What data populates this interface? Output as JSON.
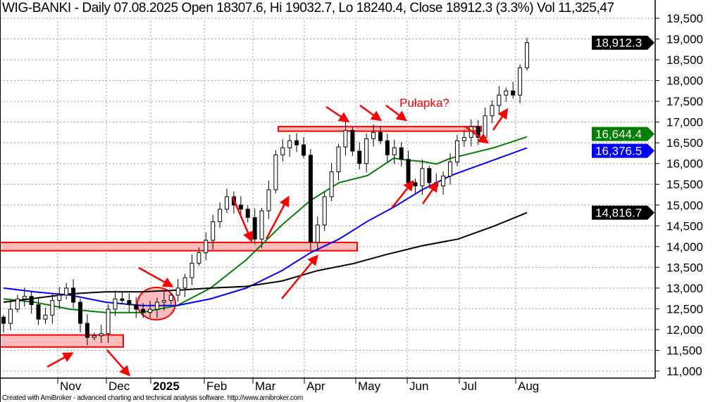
{
  "chart_data": {
    "type": "candlestick",
    "title": "WIG-BANKI - Daily 07.08.2025 Open 18307.6, Hi 19032.7, Lo 18240.4, Close 18912.3 (3.3%) Vol 11,325,47",
    "x_tick_labels": [
      "Nov",
      "Dec",
      "2025",
      "Feb",
      "Mar",
      "Apr",
      "May",
      "Jun",
      "Jul",
      "Aug"
    ],
    "y_ticks": [
      11000,
      11500,
      12000,
      12500,
      13000,
      13500,
      14000,
      14500,
      15000,
      15500,
      16000,
      16500,
      17000,
      17500,
      18000,
      18500,
      19000,
      19500
    ],
    "y_tick_labels": [
      "11,000",
      "11,500",
      "12,000",
      "12,500",
      "13,000",
      "13,500",
      "14,000",
      "14,500",
      "15,000",
      "15,500",
      "16,000",
      "16,500",
      "17,000",
      "17,500",
      "18,000",
      "18,500",
      "19,000",
      "19,500"
    ],
    "ylim": [
      10700,
      19700
    ],
    "grid": true,
    "closes": [
      12150,
      12490,
      12740,
      12800,
      12600,
      12250,
      12350,
      12700,
      12830,
      13000,
      12660,
      12150,
      11810,
      11850,
      11900,
      12490,
      12740,
      12700,
      12600,
      12490,
      12410,
      12490,
      12660,
      12700,
      12830,
      13000,
      13250,
      13600,
      13850,
      14150,
      14600,
      14900,
      15200,
      15000,
      14900,
      14700,
      14180,
      14860,
      15370,
      16210,
      16380,
      16550,
      16450,
      16200,
      14100,
      14520,
      15200,
      15800,
      16400,
      16800,
      16300,
      16000,
      16600,
      16750,
      16550,
      16210,
      16380,
      16100,
      15540,
      15460,
      15880,
      15540,
      15460,
      15700,
      16040,
      16550,
      16630,
      16890,
      16630,
      17150,
      17400,
      17650,
      17750,
      17650,
      18307.6,
      18912.3
    ],
    "last_bar": {
      "open": 18307.6,
      "high": 19032.7,
      "low": 18240.4,
      "close": 18912.3
    },
    "series": [
      {
        "color": "#008000",
        "points": [
          [
            0,
            12740
          ],
          [
            13,
            12660
          ],
          [
            28,
            12490
          ],
          [
            43,
            12410
          ],
          [
            58,
            12410
          ],
          [
            73,
            12580
          ],
          [
            87,
            13000
          ],
          [
            102,
            13680
          ],
          [
            117,
            14520
          ],
          [
            129,
            15110
          ],
          [
            141,
            15540
          ],
          [
            153,
            15710
          ],
          [
            164,
            16130
          ],
          [
            170,
            16080
          ],
          [
            176,
            16050
          ],
          [
            182,
            15990
          ],
          [
            188,
            16130
          ],
          [
            194,
            16210
          ],
          [
            206,
            16380
          ],
          [
            220,
            16644.4
          ]
        ],
        "last_label": "16,644.4"
      },
      {
        "color": "#0000ff",
        "points": [
          [
            0,
            13000
          ],
          [
            13,
            12910
          ],
          [
            28,
            12830
          ],
          [
            43,
            12660
          ],
          [
            58,
            12580
          ],
          [
            73,
            12580
          ],
          [
            87,
            12740
          ],
          [
            102,
            13000
          ],
          [
            117,
            13420
          ],
          [
            129,
            13850
          ],
          [
            141,
            14180
          ],
          [
            153,
            14610
          ],
          [
            164,
            14950
          ],
          [
            176,
            15370
          ],
          [
            188,
            15710
          ],
          [
            200,
            15960
          ],
          [
            212,
            16210
          ],
          [
            220,
            16376.5
          ]
        ],
        "last_label": "16,376.5"
      },
      {
        "color": "#000000",
        "points": [
          [
            0,
            12660
          ],
          [
            28,
            12860
          ],
          [
            43,
            12910
          ],
          [
            58,
            12910
          ],
          [
            73,
            12950
          ],
          [
            87,
            13000
          ],
          [
            102,
            13040
          ],
          [
            117,
            13170
          ],
          [
            132,
            13420
          ],
          [
            147,
            13590
          ],
          [
            161,
            13810
          ],
          [
            176,
            14020
          ],
          [
            191,
            14180
          ],
          [
            206,
            14490
          ],
          [
            220,
            14816.7
          ]
        ],
        "last_label": "14,816.7"
      }
    ],
    "last_price_label": "18,912.3",
    "zones": [
      {
        "from": 11580,
        "to": 11870
      },
      {
        "from": 13900,
        "to": 14100
      },
      {
        "from": 16780,
        "to": 16890
      }
    ],
    "annotations": {
      "text": "Pułapka?",
      "color": "#ff0000"
    }
  },
  "footer": "Created with AmiBroker - advanced charting and technical analysis software. http://www.amibroker.com"
}
